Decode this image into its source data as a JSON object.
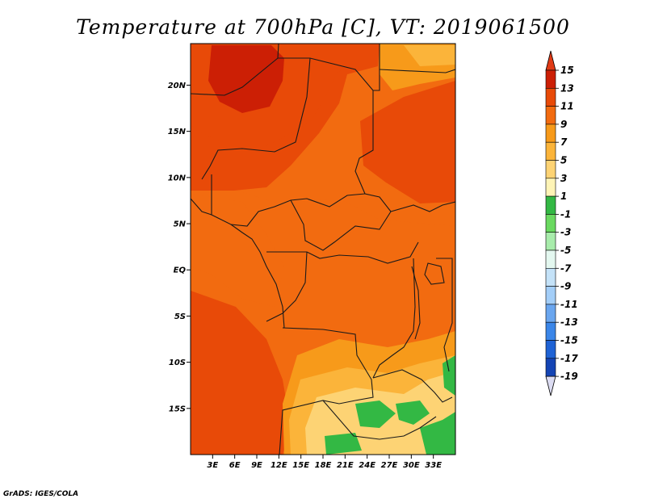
{
  "title": "Temperature at 700hPa [C], VT: 2019061500",
  "credit": "GrADS: IGES/COLA",
  "map": {
    "lon_range": [
      0,
      36
    ],
    "lat_range": [
      -20,
      24.5
    ],
    "lat_ticks": [
      {
        "value": 20,
        "label": "20N"
      },
      {
        "value": 15,
        "label": "15N"
      },
      {
        "value": 10,
        "label": "10N"
      },
      {
        "value": 5,
        "label": "5N"
      },
      {
        "value": 0,
        "label": "EQ"
      },
      {
        "value": -5,
        "label": "5S"
      },
      {
        "value": -10,
        "label": "10S"
      },
      {
        "value": -15,
        "label": "15S"
      }
    ],
    "lon_ticks": [
      {
        "value": 3,
        "label": "3E"
      },
      {
        "value": 6,
        "label": "6E"
      },
      {
        "value": 9,
        "label": "9E"
      },
      {
        "value": 12,
        "label": "12E"
      },
      {
        "value": 15,
        "label": "15E"
      },
      {
        "value": 18,
        "label": "18E"
      },
      {
        "value": 21,
        "label": "21E"
      },
      {
        "value": 24,
        "label": "24E"
      },
      {
        "value": 27,
        "label": "27E"
      },
      {
        "value": 30,
        "label": "30E"
      },
      {
        "value": 33,
        "label": "33E"
      }
    ]
  },
  "colorbar": {
    "levels": [
      "15",
      "13",
      "11",
      "9",
      "7",
      "5",
      "3",
      "1",
      "-1",
      "-3",
      "-5",
      "-7",
      "-9",
      "-11",
      "-13",
      "-15",
      "-17",
      "-19"
    ],
    "colors": [
      "#cc1f05",
      "#e84a08",
      "#f26b10",
      "#f79a1a",
      "#fbb43a",
      "#fdd374",
      "#fef4b6",
      "#33b844",
      "#6ad960",
      "#a8ecab",
      "#e4f8f0",
      "#c4e2f8",
      "#a3cef8",
      "#6aa6ef",
      "#3b86e8",
      "#1f63d5",
      "#1444b4",
      "#0f268a",
      "#08085a"
    ],
    "top_color": "#e03a15",
    "bottom_color": "#dcdcf2"
  },
  "palette": {
    "c13": "#cc1f05",
    "c11": "#e84a08",
    "c9": "#f26b10",
    "c7": "#f79a1a",
    "c5": "#fbb43a",
    "c3": "#fdd374",
    "c1": "#fef4b6",
    "green": "#33b844",
    "border": "#1a1a1a"
  },
  "field_regions": [
    {
      "name": "north-hot",
      "level": "13",
      "color": "#e84a08"
    },
    {
      "name": "sahara-peak",
      "level": "15",
      "color": "#cc1f05"
    },
    {
      "name": "southwest-warm",
      "level": "11",
      "color": "#f26b10"
    },
    {
      "name": "central-warm",
      "level": "9",
      "color": "#f79a1a"
    },
    {
      "name": "south-mild",
      "level": "7",
      "color": "#fbb43a"
    },
    {
      "name": "south-cool",
      "level": "5",
      "color": "#fdd374"
    },
    {
      "name": "southern-africa-light",
      "level": "3",
      "color": "#fef4b6"
    },
    {
      "name": "southern-africa-green",
      "level": "1",
      "color": "#33b844"
    }
  ]
}
